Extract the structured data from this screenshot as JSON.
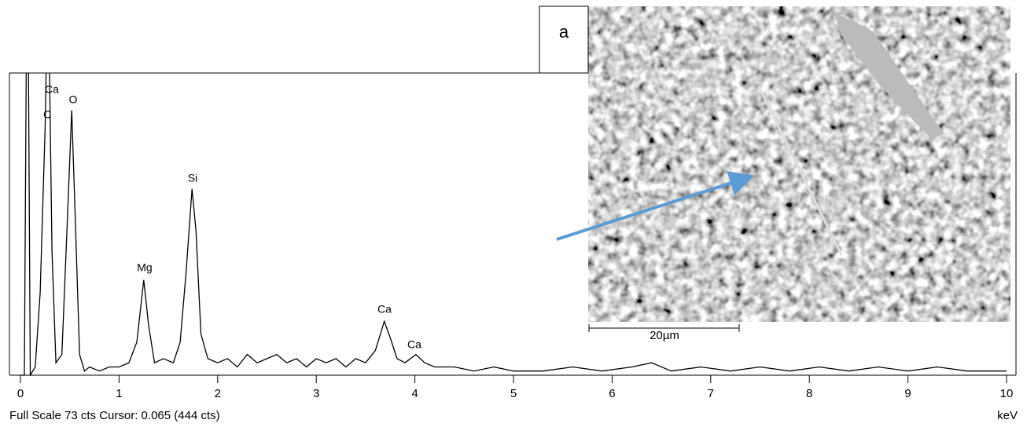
{
  "chart_data": {
    "type": "line",
    "x": [
      0,
      0.04,
      0.07,
      0.1,
      0.15,
      0.2,
      0.25,
      0.28,
      0.32,
      0.36,
      0.42,
      0.48,
      0.52,
      0.56,
      0.6,
      0.65,
      0.7,
      0.8,
      0.9,
      1.0,
      1.1,
      1.18,
      1.25,
      1.3,
      1.36,
      1.45,
      1.55,
      1.62,
      1.68,
      1.74,
      1.78,
      1.83,
      1.9,
      2.0,
      2.1,
      2.2,
      2.3,
      2.4,
      2.5,
      2.6,
      2.7,
      2.8,
      2.9,
      3.0,
      3.1,
      3.2,
      3.3,
      3.4,
      3.5,
      3.6,
      3.69,
      3.75,
      3.82,
      3.9,
      4.01,
      4.1,
      4.2,
      4.4,
      4.6,
      4.8,
      5.0,
      5.3,
      5.6,
      5.9,
      6.2,
      6.4,
      6.6,
      6.9,
      7.2,
      7.5,
      7.8,
      8.1,
      8.4,
      8.7,
      9.0,
      9.3,
      9.6,
      10.0
    ],
    "values": [
      0,
      0,
      120,
      0,
      2,
      20,
      60,
      100,
      30,
      3,
      5,
      40,
      64,
      35,
      5,
      1,
      2,
      1,
      2,
      2,
      3,
      8,
      23,
      12,
      3,
      4,
      3,
      8,
      25,
      45,
      35,
      10,
      4,
      3,
      4,
      2,
      5,
      3,
      4,
      5,
      3,
      4,
      2,
      4,
      3,
      4,
      2,
      4,
      3,
      6,
      13,
      9,
      4,
      3,
      5,
      3,
      2,
      2,
      1,
      2,
      1,
      1,
      2,
      1,
      2,
      3,
      1,
      2,
      1,
      2,
      1,
      2,
      1,
      2,
      1,
      2,
      1,
      1
    ],
    "color": "#000000",
    "xlim": [
      0,
      10
    ],
    "xticks": [
      0,
      1,
      2,
      3,
      4,
      5,
      6,
      7,
      8,
      9,
      10
    ],
    "ylim": [
      0,
      73
    ],
    "x_label": "keV",
    "status": "Full Scale 73 cts Cursor: 0.065  (444 cts)",
    "annotations": [
      "Ca",
      "C",
      "O",
      "Mg",
      "Si",
      "Ca",
      "Ca"
    ],
    "inset_label": "a",
    "scale_bar": "20µm"
  }
}
